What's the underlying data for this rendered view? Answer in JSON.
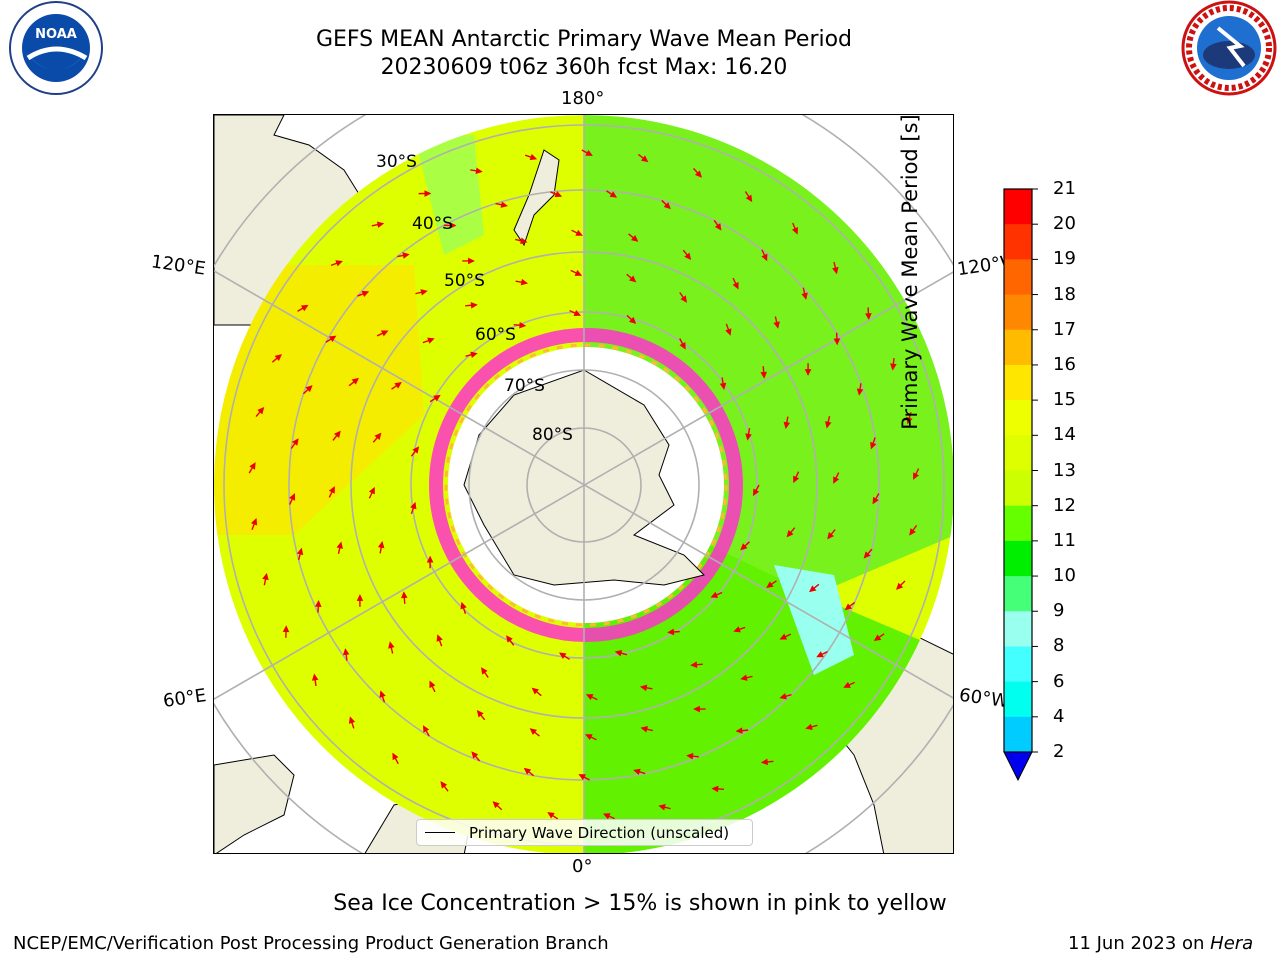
{
  "header": {
    "title_line1": "GEFS MEAN Antarctic Primary Wave Mean Period",
    "title_line2": "20230609 t06z 360h fcst   Max: 16.20"
  },
  "logos": {
    "left": "noaa-logo",
    "right": "national-weather-service-logo",
    "left_text": "NOAA"
  },
  "map": {
    "projection": "south-polar-stereographic",
    "longitude_labels": {
      "top": "180°",
      "bottom": "0°",
      "left_upper": "120°E",
      "left_lower": "60°E",
      "right_upper": "120°W",
      "right_lower": "60°W"
    },
    "latitude_labels": [
      "30°S",
      "40°S",
      "50°S",
      "60°S",
      "70°S",
      "80°S"
    ],
    "legend": "Primary Wave Direction (unscaled)",
    "colors": {
      "land": "#efeddc",
      "ice_free_ocean_low": "#ccff00",
      "mid": "#55ee00",
      "sea_ice": "#ff33cc",
      "arrows": "#ee0000"
    }
  },
  "colorbar": {
    "label": "Primary Wave Mean Period [s]",
    "ticks": [
      "21",
      "20",
      "19",
      "18",
      "17",
      "16",
      "15",
      "14",
      "13",
      "12",
      "11",
      "10",
      "9",
      "8",
      "6",
      "4",
      "2"
    ],
    "colors": [
      "#ff0000",
      "#ff3300",
      "#ff6600",
      "#ff8800",
      "#ffbb00",
      "#ffe600",
      "#eeff00",
      "#ddff00",
      "#ccff00",
      "#66ff00",
      "#00ee00",
      "#44ff77",
      "#99ffee",
      "#44ffff",
      "#00ffee",
      "#00ccff",
      "#0077ff",
      "#0000ee"
    ]
  },
  "notes": {
    "sea_ice": "Sea Ice Concentration > 15% is shown in pink to yellow"
  },
  "footer": {
    "left": "NCEP/EMC/Verification Post Processing Product Generation Branch",
    "date": "11 Jun 2023 on ",
    "machine": "Hera"
  }
}
